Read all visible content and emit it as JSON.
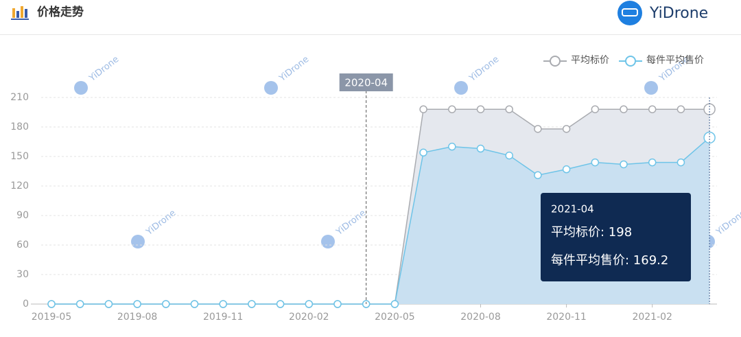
{
  "header": {
    "title": "价格走势",
    "brand": "YiDrone"
  },
  "chart_data": {
    "type": "line",
    "categories": [
      "2019-05",
      null,
      null,
      "2019-08",
      null,
      null,
      "2019-11",
      null,
      null,
      "2020-02",
      null,
      null,
      "2020-05",
      null,
      null,
      "2020-08",
      null,
      null,
      "2020-11",
      null,
      null,
      "2021-02",
      null,
      null
    ],
    "series": [
      {
        "name": "平均标价",
        "color": "#a9abb0",
        "area": "#e5e8ee",
        "values": [
          0,
          0,
          0,
          0,
          0,
          0,
          0,
          0,
          0,
          0,
          0,
          0,
          0,
          198,
          198,
          198,
          198,
          178,
          178,
          198,
          198,
          198,
          198,
          198
        ]
      },
      {
        "name": "每件平均售价",
        "color": "#6ec4e8",
        "area": "#c5dff1",
        "values": [
          0,
          0,
          0,
          0,
          0,
          0,
          0,
          0,
          0,
          0,
          0,
          0,
          0,
          154,
          160,
          158,
          151,
          131,
          137,
          144,
          142,
          144,
          144,
          169.2
        ]
      }
    ],
    "ylim": [
      0,
      210
    ],
    "yticks": [
      0,
      30,
      60,
      90,
      120,
      150,
      180,
      210
    ],
    "grid": true,
    "crosshair_label": "2020-04",
    "tooltip": {
      "title": "2021-04",
      "lines": [
        "平均标价: 198",
        "每件平均售价: 169.2"
      ]
    },
    "watermark": "YiDrone"
  }
}
